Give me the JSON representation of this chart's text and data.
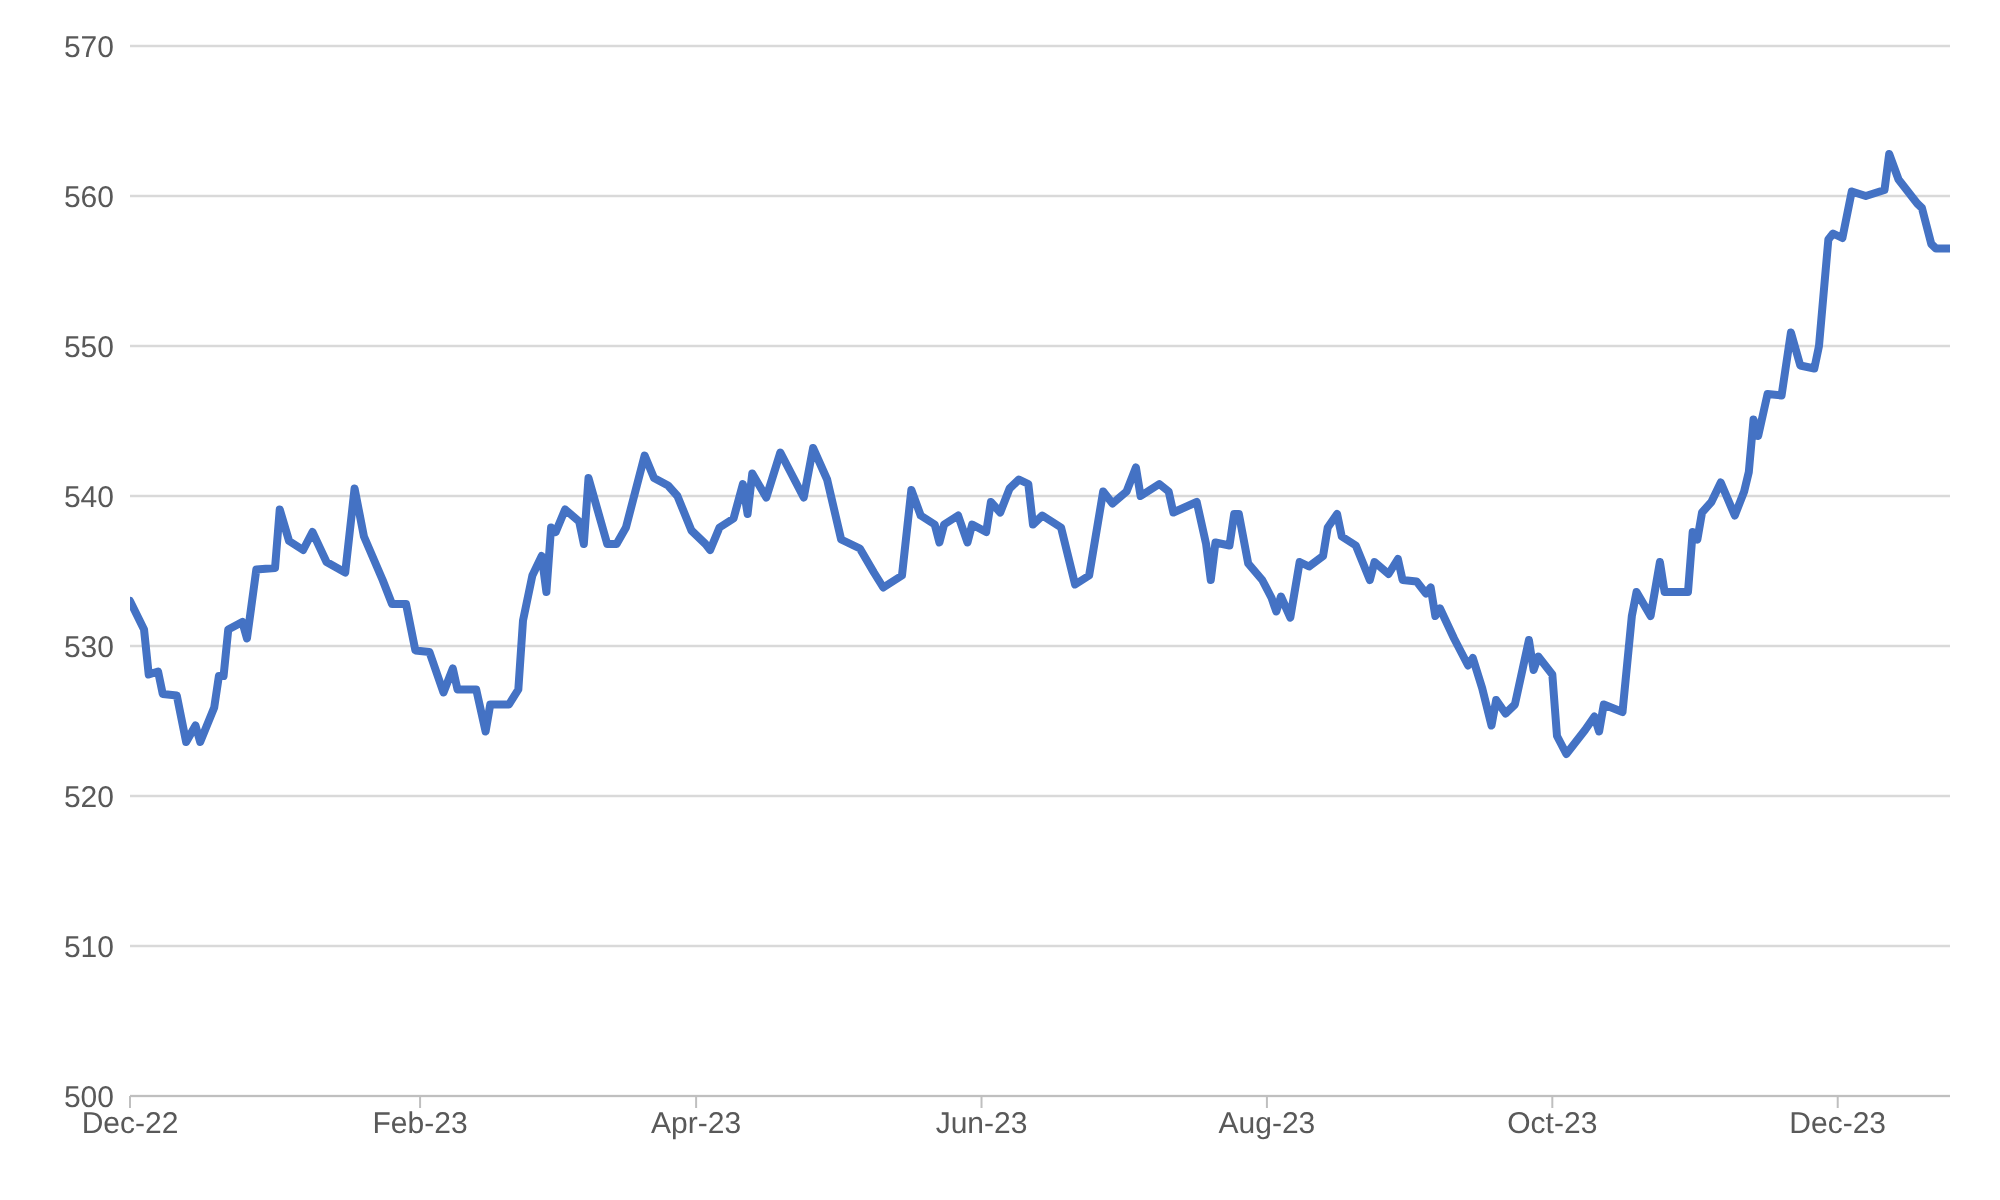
{
  "chart_data": {
    "type": "line",
    "x": [
      "2022-12-01",
      "2022-12-04",
      "2022-12-05",
      "2022-12-07",
      "2022-12-08",
      "2022-12-11",
      "2022-12-13",
      "2022-12-15",
      "2022-12-16",
      "2022-12-19",
      "2022-12-20",
      "2022-12-21",
      "2022-12-22",
      "2022-12-25",
      "2022-12-26",
      "2022-12-28",
      "2023-01-01",
      "2023-01-02",
      "2023-01-04",
      "2023-01-07",
      "2023-01-09",
      "2023-01-12",
      "2023-01-16",
      "2023-01-18",
      "2023-01-20",
      "2023-01-24",
      "2023-01-26",
      "2023-01-29",
      "2023-01-31",
      "2023-02-03",
      "2023-02-06",
      "2023-02-08",
      "2023-02-09",
      "2023-02-13",
      "2023-02-15",
      "2023-02-16",
      "2023-02-20",
      "2023-02-22",
      "2023-02-23",
      "2023-02-25",
      "2023-02-27",
      "2023-02-28",
      "2023-03-01",
      "2023-03-02",
      "2023-03-04",
      "2023-03-07",
      "2023-03-08",
      "2023-03-09",
      "2023-03-13",
      "2023-03-15",
      "2023-03-17",
      "2023-03-21",
      "2023-03-23",
      "2023-03-26",
      "2023-03-28",
      "2023-03-31",
      "2023-04-03",
      "2023-04-04",
      "2023-04-06",
      "2023-04-09",
      "2023-04-11",
      "2023-04-12",
      "2023-04-13",
      "2023-04-16",
      "2023-04-19",
      "2023-04-20",
      "2023-04-24",
      "2023-04-26",
      "2023-04-29",
      "2023-05-02",
      "2023-05-06",
      "2023-05-09",
      "2023-05-11",
      "2023-05-15",
      "2023-05-17",
      "2023-05-19",
      "2023-05-22",
      "2023-05-23",
      "2023-05-24",
      "2023-05-27",
      "2023-05-29",
      "2023-05-30",
      "2023-06-02",
      "2023-06-03",
      "2023-06-05",
      "2023-06-07",
      "2023-06-09",
      "2023-06-11",
      "2023-06-12",
      "2023-06-14",
      "2023-06-18",
      "2023-06-21",
      "2023-06-24",
      "2023-06-27",
      "2023-06-29",
      "2023-07-02",
      "2023-07-04",
      "2023-07-05",
      "2023-07-09",
      "2023-07-11",
      "2023-07-12",
      "2023-07-17",
      "2023-07-19",
      "2023-07-20",
      "2023-07-21",
      "2023-07-24",
      "2023-07-25",
      "2023-07-26",
      "2023-07-28",
      "2023-07-31",
      "2023-08-02",
      "2023-08-03",
      "2023-08-04",
      "2023-08-06",
      "2023-08-08",
      "2023-08-10",
      "2023-08-13",
      "2023-08-14",
      "2023-08-16",
      "2023-08-17",
      "2023-08-20",
      "2023-08-23",
      "2023-08-24",
      "2023-08-27",
      "2023-08-29",
      "2023-08-30",
      "2023-09-02",
      "2023-09-04",
      "2023-09-05",
      "2023-09-06",
      "2023-09-07",
      "2023-09-10",
      "2023-09-13",
      "2023-09-14",
      "2023-09-16",
      "2023-09-18",
      "2023-09-19",
      "2023-09-21",
      "2023-09-23",
      "2023-09-26",
      "2023-09-27",
      "2023-09-28",
      "2023-10-01",
      "2023-10-02",
      "2023-10-04",
      "2023-10-08",
      "2023-10-10",
      "2023-10-11",
      "2023-10-12",
      "2023-10-16",
      "2023-10-18",
      "2023-10-19",
      "2023-10-22",
      "2023-10-24",
      "2023-10-25",
      "2023-10-30",
      "2023-10-31",
      "2023-11-01",
      "2023-11-02",
      "2023-11-04",
      "2023-11-06",
      "2023-11-09",
      "2023-11-11",
      "2023-11-12",
      "2023-11-13",
      "2023-11-14",
      "2023-11-16",
      "2023-11-19",
      "2023-11-21",
      "2023-11-23",
      "2023-11-26",
      "2023-11-27",
      "2023-11-29",
      "2023-11-30",
      "2023-12-02",
      "2023-12-04",
      "2023-12-07",
      "2023-12-11",
      "2023-12-12",
      "2023-12-14",
      "2023-12-18",
      "2023-12-19",
      "2023-12-21",
      "2023-12-22",
      "2023-12-25"
    ],
    "series": [
      {
        "color": "#4472c4",
        "values": [
          533.0,
          531.1,
          528.1,
          528.3,
          526.8,
          526.7,
          523.6,
          524.7,
          523.6,
          525.9,
          528.0,
          528.0,
          531.1,
          531.6,
          530.5,
          535.1,
          535.2,
          539.1,
          537.0,
          536.4,
          537.6,
          535.6,
          534.9,
          540.5,
          537.3,
          534.4,
          532.8,
          532.8,
          529.7,
          529.6,
          526.9,
          528.5,
          527.1,
          527.1,
          524.3,
          526.1,
          526.1,
          527.1,
          531.7,
          534.7,
          536.0,
          533.6,
          537.9,
          537.6,
          539.1,
          538.3,
          536.8,
          541.2,
          536.8,
          536.8,
          537.9,
          542.7,
          541.2,
          540.7,
          540.0,
          537.7,
          536.8,
          536.4,
          537.9,
          538.5,
          540.8,
          538.8,
          541.5,
          539.9,
          542.9,
          542.3,
          539.9,
          543.2,
          541.1,
          537.1,
          536.5,
          534.9,
          533.9,
          534.7,
          540.4,
          538.7,
          538.1,
          536.9,
          538.1,
          538.7,
          536.9,
          538.1,
          537.6,
          539.6,
          538.9,
          540.5,
          541.1,
          540.8,
          538.1,
          538.7,
          537.9,
          534.1,
          534.7,
          540.3,
          539.5,
          540.3,
          541.9,
          540.0,
          540.8,
          540.3,
          538.9,
          539.6,
          536.8,
          534.4,
          536.9,
          536.7,
          538.8,
          538.8,
          535.5,
          534.4,
          533.2,
          532.3,
          533.3,
          531.9,
          535.6,
          535.3,
          536.0,
          537.9,
          538.8,
          537.3,
          536.7,
          534.4,
          535.6,
          534.8,
          535.8,
          534.4,
          534.3,
          533.5,
          533.9,
          532.0,
          532.5,
          530.5,
          528.7,
          529.2,
          527.2,
          524.7,
          526.4,
          525.5,
          526.1,
          530.4,
          528.4,
          529.3,
          528.1,
          524.0,
          522.8,
          524.4,
          525.3,
          524.3,
          526.1,
          525.6,
          532.0,
          533.6,
          532.0,
          535.6,
          533.6,
          533.6,
          537.6,
          537.1,
          538.9,
          539.6,
          540.9,
          538.7,
          540.3,
          541.6,
          545.1,
          544.0,
          546.8,
          546.7,
          550.9,
          548.7,
          548.5,
          550.0,
          557.1,
          557.5,
          557.2,
          560.3,
          560.0,
          560.4,
          562.8,
          561.1,
          559.5,
          559.2,
          556.8,
          556.5,
          556.5
        ]
      }
    ],
    "xlim": [
      "2022-12-01",
      "2023-12-25"
    ],
    "xticks": [
      {
        "value": "2022-12-01",
        "label": "Dec-22"
      },
      {
        "value": "2023-02-01",
        "label": "Feb-23"
      },
      {
        "value": "2023-04-01",
        "label": "Apr-23"
      },
      {
        "value": "2023-06-01",
        "label": "Jun-23"
      },
      {
        "value": "2023-08-01",
        "label": "Aug-23"
      },
      {
        "value": "2023-10-01",
        "label": "Oct-23"
      },
      {
        "value": "2023-12-01",
        "label": "Dec-23"
      }
    ],
    "ylim": [
      500,
      570
    ],
    "yticks": [
      500,
      510,
      520,
      530,
      540,
      550,
      560,
      570
    ],
    "grid": "y",
    "legend": false,
    "marker": "none",
    "line_style": "solid"
  }
}
